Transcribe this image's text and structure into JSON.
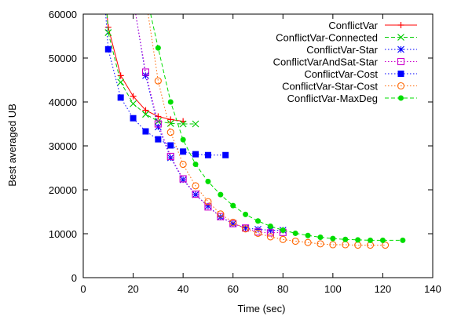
{
  "chart_data": {
    "type": "line",
    "title": "",
    "xlabel": "Time (sec)",
    "ylabel": "Best averaged UB",
    "xlim": [
      0,
      140
    ],
    "ylim": [
      0,
      60000
    ],
    "xticks": [
      0,
      20,
      40,
      60,
      80,
      100,
      120,
      140
    ],
    "yticks": [
      0,
      10000,
      20000,
      30000,
      40000,
      50000,
      60000
    ],
    "grid": false,
    "legend_position": "top-right",
    "series": [
      {
        "name": "ConflictVar",
        "color": "#ff0000",
        "marker": "plus",
        "dash": "solid",
        "points": [
          [
            9.5,
            60000
          ],
          [
            10,
            57000
          ],
          [
            15,
            46000
          ],
          [
            20,
            41300
          ],
          [
            25,
            38100
          ],
          [
            30,
            36700
          ],
          [
            35,
            36000
          ],
          [
            40,
            35600
          ]
        ]
      },
      {
        "name": "ConflictVar-Connected",
        "color": "#00cc00",
        "marker": "x",
        "dash": "dashed",
        "points": [
          [
            9.5,
            60000
          ],
          [
            10,
            55800
          ],
          [
            15,
            44500
          ],
          [
            20,
            39600
          ],
          [
            25,
            37200
          ],
          [
            30,
            35600
          ],
          [
            35,
            35100
          ],
          [
            40,
            35000
          ],
          [
            45,
            35000
          ]
        ]
      },
      {
        "name": "ConflictVar-Star",
        "color": "#0000ff",
        "marker": "star",
        "dash": "dotted",
        "points": [
          [
            21,
            60000
          ],
          [
            25,
            46000
          ],
          [
            30,
            34300
          ],
          [
            35,
            27300
          ],
          [
            40,
            22300
          ],
          [
            45,
            18900
          ],
          [
            50,
            16300
          ],
          [
            55,
            13800
          ],
          [
            60,
            12300
          ],
          [
            65,
            11300
          ],
          [
            70,
            11000
          ],
          [
            75,
            10800
          ],
          [
            80,
            10800
          ]
        ]
      },
      {
        "name": "ConflictVarAndSat-Star",
        "color": "#cc00cc",
        "marker": "square-open",
        "dash": "dotted",
        "points": [
          [
            21,
            60000
          ],
          [
            25,
            46800
          ],
          [
            30,
            35000
          ],
          [
            35,
            27600
          ],
          [
            40,
            22500
          ],
          [
            45,
            19000
          ],
          [
            50,
            16100
          ],
          [
            55,
            13900
          ],
          [
            60,
            12300
          ],
          [
            65,
            11300
          ],
          [
            70,
            10400
          ],
          [
            75,
            10200
          ],
          [
            80,
            10300
          ]
        ]
      },
      {
        "name": "ConflictVar-Cost",
        "color": "#0000ff",
        "marker": "square-filled",
        "dash": "dotted",
        "points": [
          [
            9,
            60000
          ],
          [
            10,
            52000
          ],
          [
            15,
            41000
          ],
          [
            20,
            36300
          ],
          [
            25,
            33300
          ],
          [
            30,
            31500
          ],
          [
            35,
            30100
          ],
          [
            40,
            28700
          ],
          [
            45,
            28100
          ],
          [
            50,
            27900
          ],
          [
            57,
            27900
          ]
        ]
      },
      {
        "name": "ConflictVar-Star-Cost",
        "color": "#ff6600",
        "marker": "circle-open",
        "dash": "dotted",
        "points": [
          [
            26,
            60000
          ],
          [
            30,
            44800
          ],
          [
            35,
            33100
          ],
          [
            40,
            25800
          ],
          [
            45,
            20900
          ],
          [
            50,
            17300
          ],
          [
            55,
            14500
          ],
          [
            60,
            12600
          ],
          [
            65,
            11100
          ],
          [
            70,
            10100
          ],
          [
            75,
            9300
          ],
          [
            80,
            8700
          ],
          [
            85,
            8300
          ],
          [
            90,
            8000
          ],
          [
            95,
            7700
          ],
          [
            100,
            7500
          ],
          [
            105,
            7500
          ],
          [
            110,
            7400
          ],
          [
            115,
            7400
          ],
          [
            121,
            7400
          ]
        ]
      },
      {
        "name": "ConflictVar-MaxDeg",
        "color": "#00dd00",
        "marker": "circle-filled",
        "dash": "dashed",
        "points": [
          [
            27,
            60000
          ],
          [
            30,
            52300
          ],
          [
            35,
            40000
          ],
          [
            40,
            31400
          ],
          [
            45,
            25800
          ],
          [
            50,
            21900
          ],
          [
            55,
            18900
          ],
          [
            60,
            16400
          ],
          [
            65,
            14400
          ],
          [
            70,
            12900
          ],
          [
            75,
            11700
          ],
          [
            80,
            10800
          ],
          [
            85,
            10100
          ],
          [
            90,
            9600
          ],
          [
            95,
            9200
          ],
          [
            100,
            8900
          ],
          [
            105,
            8700
          ],
          [
            110,
            8600
          ],
          [
            115,
            8500
          ],
          [
            120,
            8500
          ],
          [
            128,
            8500
          ]
        ]
      }
    ]
  }
}
